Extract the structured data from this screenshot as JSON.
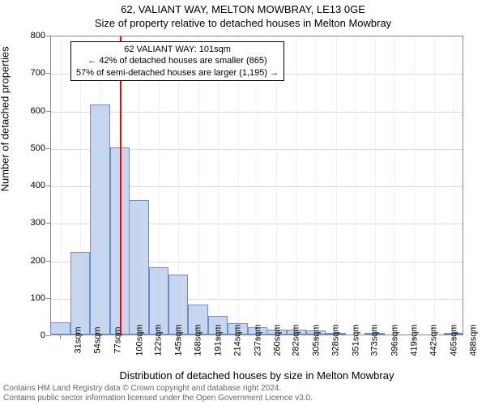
{
  "title": "62, VALIANT WAY, MELTON MOWBRAY, LE13 0GE",
  "subtitle": "Size of property relative to detached houses in Melton Mowbray",
  "y_label": "Number of detached properties",
  "x_label": "Distribution of detached houses by size in Melton Mowbray",
  "chart": {
    "type": "histogram",
    "background_color": "#ffffff",
    "grid_major_color": "#d9d9d9",
    "grid_minor_color": "#f0f0f0",
    "axis_color": "#888888",
    "bar_fill": "#c7d6ef",
    "bar_stroke": "#6a8fcf",
    "marker_color": "#ff0000",
    "marker_x": 101,
    "ylim": [
      0,
      800
    ],
    "ytick_step": 100,
    "xlim": [
      20,
      500
    ],
    "x_ticks": [
      31,
      54,
      77,
      100,
      122,
      145,
      168,
      191,
      214,
      237,
      260,
      282,
      305,
      328,
      351,
      373,
      396,
      419,
      442,
      465,
      488
    ],
    "x_tick_labels": [
      "31sqm",
      "54sqm",
      "77sqm",
      "100sqm",
      "122sqm",
      "145sqm",
      "168sqm",
      "191sqm",
      "214sqm",
      "237sqm",
      "260sqm",
      "282sqm",
      "305sqm",
      "328sqm",
      "351sqm",
      "373sqm",
      "396sqm",
      "419sqm",
      "442sqm",
      "465sqm",
      "488sqm"
    ],
    "bar_width_data": 23,
    "bars": [
      {
        "x": 31,
        "y": 32
      },
      {
        "x": 54,
        "y": 220
      },
      {
        "x": 77,
        "y": 615
      },
      {
        "x": 100,
        "y": 500
      },
      {
        "x": 122,
        "y": 360
      },
      {
        "x": 145,
        "y": 180
      },
      {
        "x": 168,
        "y": 160
      },
      {
        "x": 191,
        "y": 80
      },
      {
        "x": 214,
        "y": 50
      },
      {
        "x": 237,
        "y": 30
      },
      {
        "x": 260,
        "y": 20
      },
      {
        "x": 282,
        "y": 12
      },
      {
        "x": 305,
        "y": 14
      },
      {
        "x": 328,
        "y": 10
      },
      {
        "x": 351,
        "y": 2
      },
      {
        "x": 373,
        "y": 0
      },
      {
        "x": 396,
        "y": 2
      },
      {
        "x": 419,
        "y": 0
      },
      {
        "x": 442,
        "y": 0
      },
      {
        "x": 465,
        "y": 0
      },
      {
        "x": 488,
        "y": 2
      }
    ]
  },
  "annotation": {
    "line1": "62 VALIANT WAY: 101sqm",
    "line2": "← 42% of detached houses are smaller (865)",
    "line3": "57% of semi-detached houses are larger (1,195) →"
  },
  "footer": {
    "line1": "Contains HM Land Registry data © Crown copyright and database right 2024.",
    "line2": "Contains public sector information licensed under the Open Government Licence v3.0."
  }
}
